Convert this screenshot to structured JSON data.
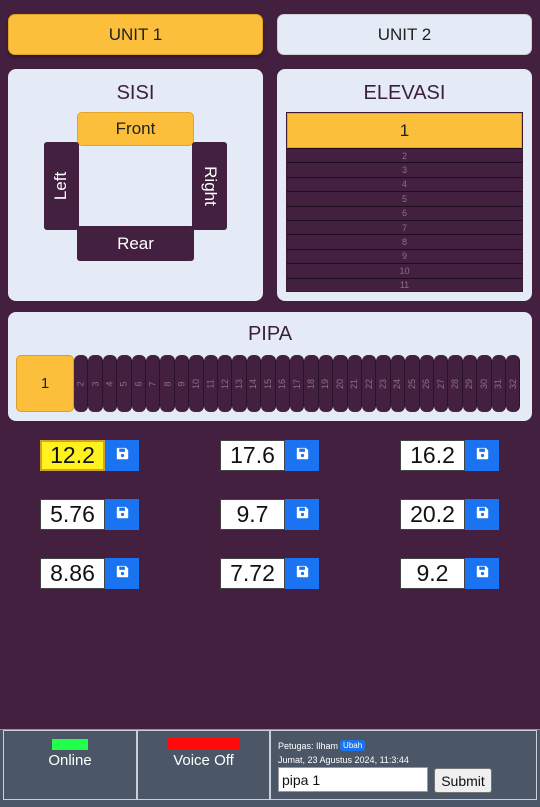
{
  "units": {
    "unit1": "UNIT 1",
    "unit2": "UNIT 2",
    "selected": "UNIT 1"
  },
  "sisi": {
    "title": "SISI",
    "front": "Front",
    "rear": "Rear",
    "left": "Left",
    "right": "Right",
    "selected": "Front"
  },
  "elevasi": {
    "title": "ELEVASI",
    "selected": "1",
    "items": [
      "2",
      "3",
      "4",
      "5",
      "6",
      "7",
      "8",
      "9",
      "10",
      "11"
    ]
  },
  "pipa": {
    "title": "PIPA",
    "selected": "1",
    "items": [
      "2",
      "3",
      "4",
      "5",
      "6",
      "7",
      "8",
      "9",
      "10",
      "11",
      "12",
      "13",
      "14",
      "15",
      "16",
      "17",
      "18",
      "19",
      "20",
      "21",
      "22",
      "23",
      "24",
      "25",
      "26",
      "27",
      "28",
      "29",
      "30",
      "31",
      "32"
    ]
  },
  "values": [
    "12.2",
    "17.6",
    "16.2",
    "5.76",
    "9.7",
    "20.2",
    "8.86",
    "7.72",
    "9.2"
  ],
  "active_value_index": 0,
  "save_icon": "floppy-disk-icon",
  "footer": {
    "online_label": "Online",
    "online_color": "#22ff4a",
    "voice_label": "Voice Off",
    "voice_color": "#ff0a0a",
    "petugas_label": "Petugas: Ilham",
    "ubah_label": "Ubah",
    "datetime": "Jumat, 23 Agustus 2024, 11:3:44",
    "note_value": "pipa 1",
    "submit_label": "Submit"
  },
  "colors": {
    "background": "#43203f",
    "accent": "#fbbf3c",
    "panel": "#e4eaf6",
    "save_button": "#1a73f0"
  }
}
